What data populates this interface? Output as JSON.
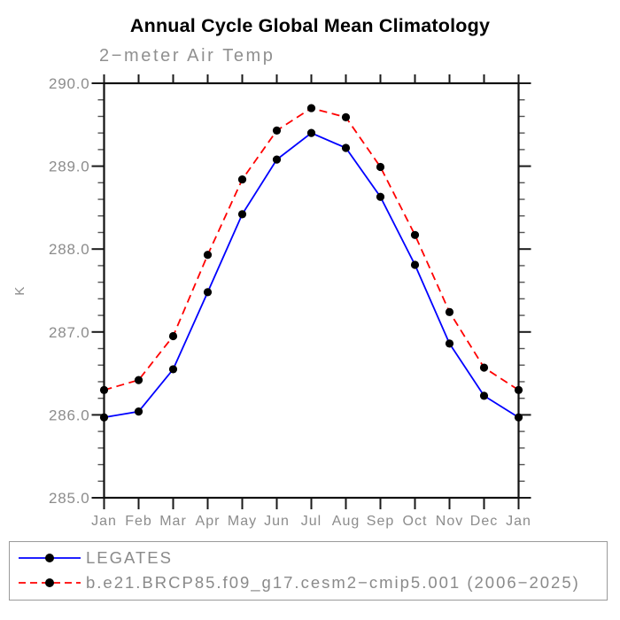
{
  "chart_data": {
    "type": "line",
    "title": "Annual Cycle Global Mean Climatology",
    "subtitle": "2−meter Air Temp",
    "ylabel": "K",
    "xlabel": "",
    "ylim": [
      285.0,
      290.0
    ],
    "ytick_interval": 1.0,
    "yminor_tick_interval": 0.2,
    "ytick_labels": [
      "285.0",
      "286.0",
      "287.0",
      "288.0",
      "289.0",
      "290.0"
    ],
    "categories": [
      "Jan",
      "Feb",
      "Mar",
      "Apr",
      "May",
      "Jun",
      "Jul",
      "Aug",
      "Sep",
      "Oct",
      "Nov",
      "Dec",
      "Jan"
    ],
    "grid": false,
    "legend_position": "boxed-below-plot",
    "axis_color": "#000000",
    "label_color": "#8c8c8c",
    "series": [
      {
        "name": "LEGATES",
        "color": "#0000ff",
        "line_style": "solid",
        "marker": "filled-circle",
        "marker_color": "#000000",
        "values": [
          285.97,
          286.04,
          286.55,
          287.48,
          288.42,
          289.08,
          289.4,
          289.22,
          288.63,
          287.81,
          286.86,
          286.23,
          285.97
        ]
      },
      {
        "name": "b.e21.BRCP85.f09_g17.cesm2−cmip5.001 (2006−2025)",
        "color": "#ff0000",
        "line_style": "dashed",
        "marker": "filled-circle",
        "marker_color": "#000000",
        "values": [
          286.3,
          286.42,
          286.95,
          287.93,
          288.84,
          289.43,
          289.7,
          289.59,
          288.99,
          288.17,
          287.24,
          286.57,
          286.3
        ]
      }
    ]
  }
}
